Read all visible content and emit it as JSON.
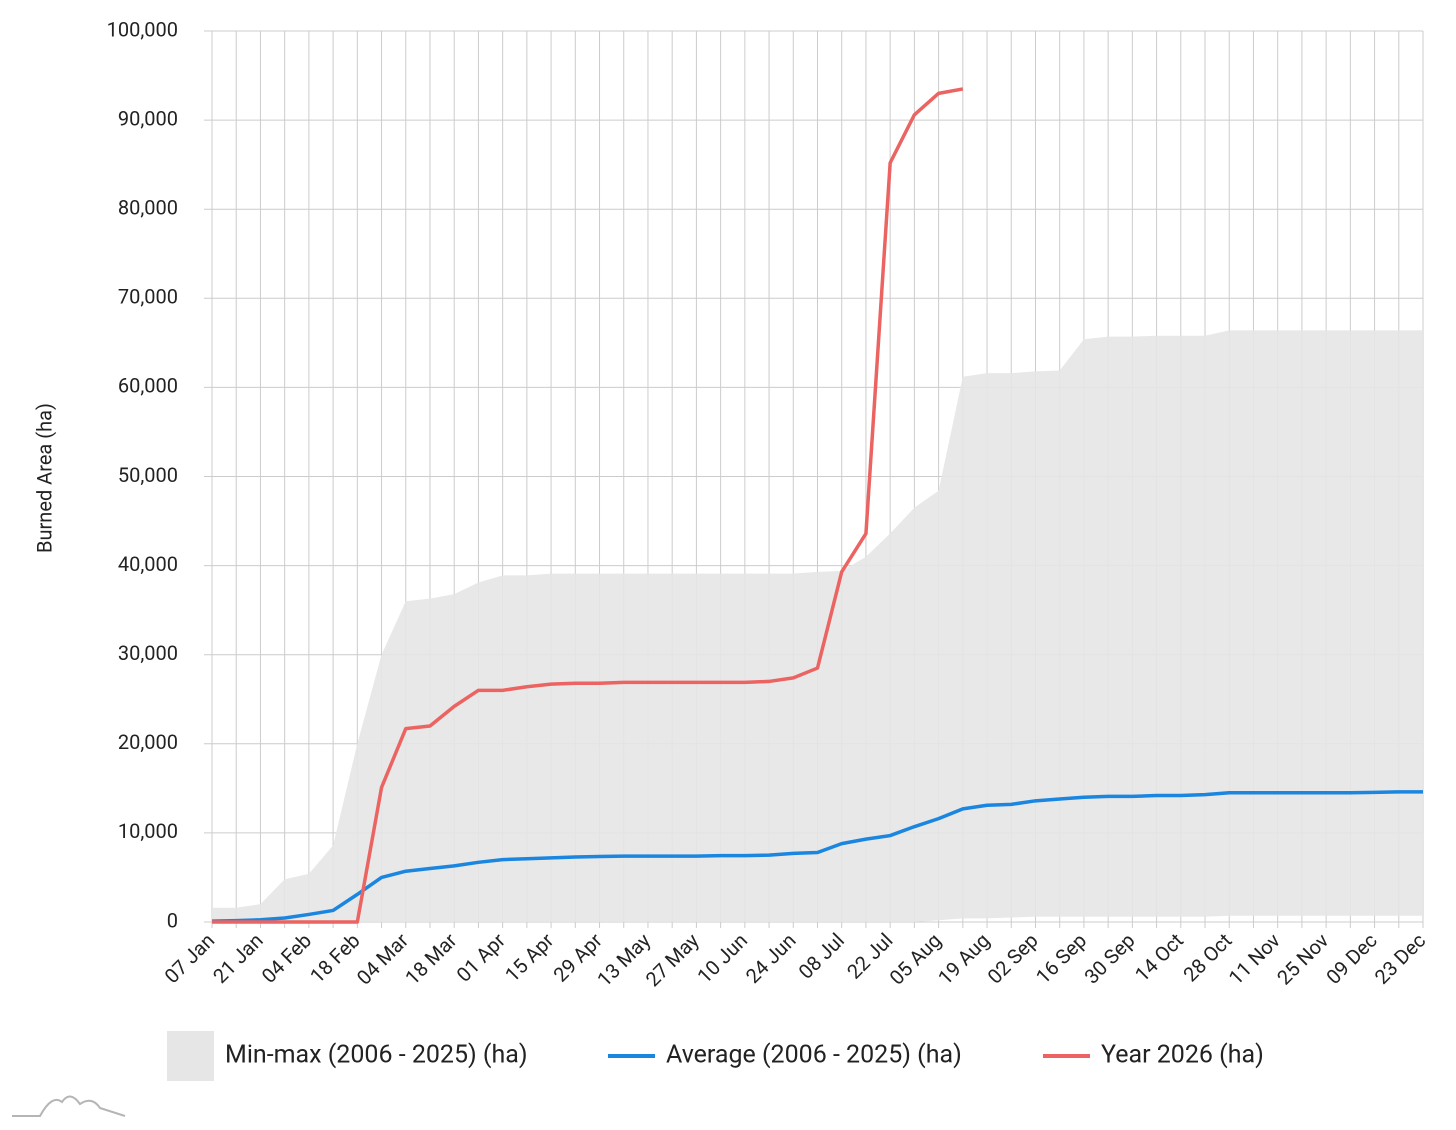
{
  "chart_data": {
    "type": "line",
    "ylabel": "Burned Area (ha)",
    "categories": [
      "07 Jan",
      null,
      "21 Jan",
      null,
      "04 Feb",
      null,
      "18 Feb",
      null,
      "04 Mar",
      null,
      "18 Mar",
      null,
      "01 Apr",
      null,
      "15 Apr",
      null,
      "29 Apr",
      null,
      "13 May",
      null,
      "27 May",
      null,
      "10 Jun",
      null,
      "24 Jun",
      null,
      "08 Jul",
      null,
      "22 Jul",
      null,
      "05 Aug",
      null,
      "19 Aug",
      null,
      "02 Sep",
      null,
      "16 Sep",
      null,
      "30 Sep",
      null,
      "14 Oct",
      null,
      "28 Oct",
      null,
      "11 Nov",
      null,
      "25 Nov",
      null,
      "09 Dec",
      null,
      "23 Dec"
    ],
    "ylim": [
      0,
      100000
    ],
    "yticks": [
      0,
      {
        "value": 10000,
        "label": "10,000"
      },
      {
        "value": 20000,
        "label": "20,000"
      },
      {
        "value": 30000,
        "label": "30,000"
      },
      {
        "value": 40000,
        "label": "40,000"
      },
      {
        "value": 50000,
        "label": "50,000"
      },
      {
        "value": 60000,
        "label": "60,000"
      },
      {
        "value": 70000,
        "label": "70,000"
      },
      {
        "value": 80000,
        "label": "80,000"
      },
      {
        "value": 90000,
        "label": "90,000"
      },
      {
        "value": 100000,
        "label": "100,000"
      }
    ],
    "grid": true,
    "legend": "bottom",
    "series": [
      {
        "name": "Min-max (2006 - 2025) (ha)",
        "type": "band",
        "color": "#e6e6e6",
        "high": [
          1600,
          1600,
          2000,
          4800,
          5400,
          8600,
          20000,
          30000,
          36000,
          36300,
          36800,
          38100,
          38900,
          38900,
          39100,
          39100,
          39100,
          39100,
          39100,
          39100,
          39100,
          39100,
          39100,
          39100,
          39100,
          39300,
          39400,
          41000,
          43600,
          46500,
          48400,
          61200,
          61600,
          61600,
          61800,
          61900,
          65400,
          65700,
          65700,
          65800,
          65800,
          65800,
          66400,
          66400,
          66400,
          66400,
          66400,
          66400,
          66400,
          66400,
          66400
        ],
        "low": [
          0,
          0,
          0,
          0,
          0,
          0,
          0,
          0,
          0,
          0,
          0,
          0,
          0,
          0,
          0,
          0,
          0,
          0,
          0,
          0,
          0,
          0,
          0,
          0,
          0,
          0,
          0,
          0,
          0,
          0,
          200,
          400,
          400,
          500,
          600,
          600,
          600,
          600,
          600,
          600,
          600,
          600,
          700,
          700,
          700,
          700,
          700,
          700,
          700,
          700,
          700
        ]
      },
      {
        "name": "Average (2006 - 2025) (ha)",
        "type": "line",
        "color": "#1a86e0",
        "values": [
          100,
          150,
          250,
          450,
          850,
          1300,
          3100,
          5000,
          5700,
          6000,
          6300,
          6700,
          7000,
          7100,
          7200,
          7300,
          7350,
          7400,
          7400,
          7400,
          7400,
          7450,
          7450,
          7500,
          7700,
          7800,
          8800,
          9300,
          9700,
          10700,
          11600,
          12700,
          13100,
          13200,
          13600,
          13800,
          14000,
          14100,
          14100,
          14200,
          14200,
          14300,
          14500,
          14500,
          14500,
          14500,
          14500,
          14500,
          14550,
          14600,
          14600
        ]
      },
      {
        "name": "Year 2026 (ha)",
        "type": "line",
        "color": "#eb6461",
        "values": [
          0,
          0,
          0,
          0,
          0,
          0,
          0,
          15100,
          21700,
          22000,
          24200,
          26000,
          26000,
          26400,
          26700,
          26800,
          26800,
          26900,
          26900,
          26900,
          26900,
          26900,
          26900,
          27000,
          27400,
          28500,
          39300,
          43600,
          85200,
          90600,
          93000,
          93500,
          null,
          null,
          null,
          null,
          null,
          null,
          null,
          null,
          null,
          null,
          null,
          null,
          null,
          null,
          null,
          null,
          null,
          null,
          null
        ]
      }
    ]
  }
}
